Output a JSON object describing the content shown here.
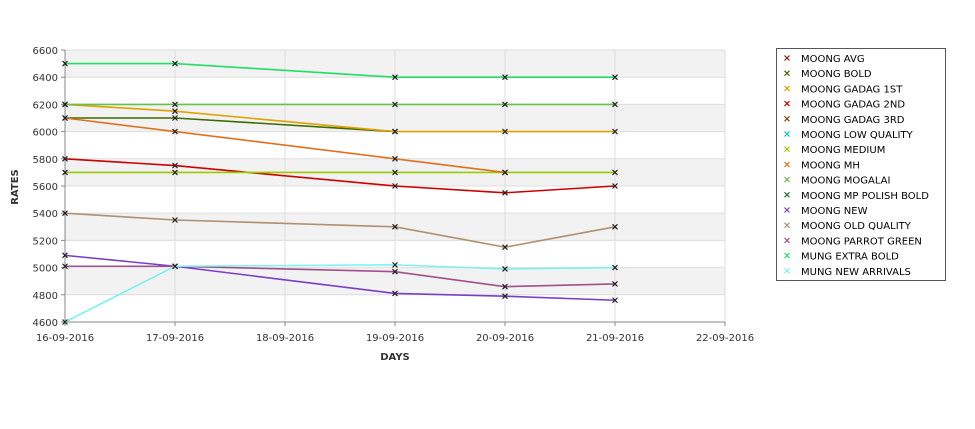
{
  "chart_data": {
    "type": "line",
    "title": "",
    "xlabel": "DAYS",
    "ylabel": "RATES",
    "x_ticks": [
      "16-09-2016",
      "17-09-2016",
      "18-09-2016",
      "19-09-2016",
      "20-09-2016",
      "21-09-2016",
      "22-09-2016"
    ],
    "y_ticks": [
      4600,
      4800,
      5000,
      5200,
      5400,
      5600,
      5800,
      6000,
      6200,
      6400,
      6600
    ],
    "ylim": [
      4600,
      6600
    ],
    "grid": true,
    "legend_position": "right",
    "series": [
      {
        "name": "MOONG AVG",
        "color": "#8b1a1a",
        "points": []
      },
      {
        "name": "MOONG BOLD",
        "color": "#3d6b00",
        "points": [
          [
            "16-09-2016",
            6100
          ],
          [
            "17-09-2016",
            6100
          ],
          [
            "19-09-2016",
            6000
          ]
        ]
      },
      {
        "name": "MOONG GADAG 1ST",
        "color": "#e0a000",
        "points": [
          [
            "16-09-2016",
            6200
          ],
          [
            "17-09-2016",
            6150
          ],
          [
            "19-09-2016",
            6000
          ],
          [
            "20-09-2016",
            6000
          ],
          [
            "21-09-2016",
            6000
          ]
        ]
      },
      {
        "name": "MOONG GADAG 2ND",
        "color": "#cc0000",
        "points": [
          [
            "16-09-2016",
            5800
          ],
          [
            "17-09-2016",
            5750
          ],
          [
            "19-09-2016",
            5600
          ],
          [
            "20-09-2016",
            5550
          ],
          [
            "21-09-2016",
            5600
          ]
        ]
      },
      {
        "name": "MOONG GADAG 3RD",
        "color": "#8b4513",
        "points": []
      },
      {
        "name": "MOONG LOW QUALITY",
        "color": "#00c0d0",
        "points": []
      },
      {
        "name": "MOONG MEDIUM",
        "color": "#99cc00",
        "points": [
          [
            "16-09-2016",
            5700
          ],
          [
            "17-09-2016",
            5700
          ],
          [
            "19-09-2016",
            5700
          ],
          [
            "20-09-2016",
            5700
          ],
          [
            "21-09-2016",
            5700
          ]
        ]
      },
      {
        "name": "MOONG MH",
        "color": "#e07020",
        "points": [
          [
            "16-09-2016",
            6100
          ],
          [
            "17-09-2016",
            6000
          ],
          [
            "19-09-2016",
            5800
          ],
          [
            "20-09-2016",
            5700
          ]
        ]
      },
      {
        "name": "MOONG MOGALAI",
        "color": "#66c04d",
        "points": [
          [
            "16-09-2016",
            6200
          ],
          [
            "17-09-2016",
            6200
          ],
          [
            "19-09-2016",
            6200
          ],
          [
            "20-09-2016",
            6200
          ],
          [
            "21-09-2016",
            6200
          ]
        ]
      },
      {
        "name": "MOONG MP POLISH BOLD",
        "color": "#2a6e3a",
        "points": []
      },
      {
        "name": "MOONG NEW",
        "color": "#7a3dc8",
        "points": [
          [
            "16-09-2016",
            5090
          ],
          [
            "17-09-2016",
            5010
          ],
          [
            "19-09-2016",
            4810
          ],
          [
            "20-09-2016",
            4790
          ],
          [
            "21-09-2016",
            4760
          ]
        ]
      },
      {
        "name": "MOONG OLD QUALITY",
        "color": "#b09070",
        "points": [
          [
            "16-09-2016",
            5400
          ],
          [
            "17-09-2016",
            5350
          ],
          [
            "19-09-2016",
            5300
          ],
          [
            "20-09-2016",
            5150
          ],
          [
            "21-09-2016",
            5300
          ]
        ]
      },
      {
        "name": "MOONG PARROT GREEN",
        "color": "#a0508a",
        "points": [
          [
            "16-09-2016",
            5010
          ],
          [
            "17-09-2016",
            5010
          ],
          [
            "19-09-2016",
            4970
          ],
          [
            "20-09-2016",
            4860
          ],
          [
            "21-09-2016",
            4880
          ]
        ]
      },
      {
        "name": "MUNG EXTRA BOLD",
        "color": "#22dd66",
        "points": [
          [
            "16-09-2016",
            6500
          ],
          [
            "17-09-2016",
            6500
          ],
          [
            "19-09-2016",
            6400
          ],
          [
            "20-09-2016",
            6400
          ],
          [
            "21-09-2016",
            6400
          ]
        ]
      },
      {
        "name": "MUNG NEW ARRIVALS",
        "color": "#7ff0f0",
        "points": [
          [
            "16-09-2016",
            4600
          ],
          [
            "17-09-2016",
            5010
          ],
          [
            "19-09-2016",
            5020
          ],
          [
            "20-09-2016",
            4990
          ],
          [
            "21-09-2016",
            5000
          ]
        ]
      }
    ]
  }
}
